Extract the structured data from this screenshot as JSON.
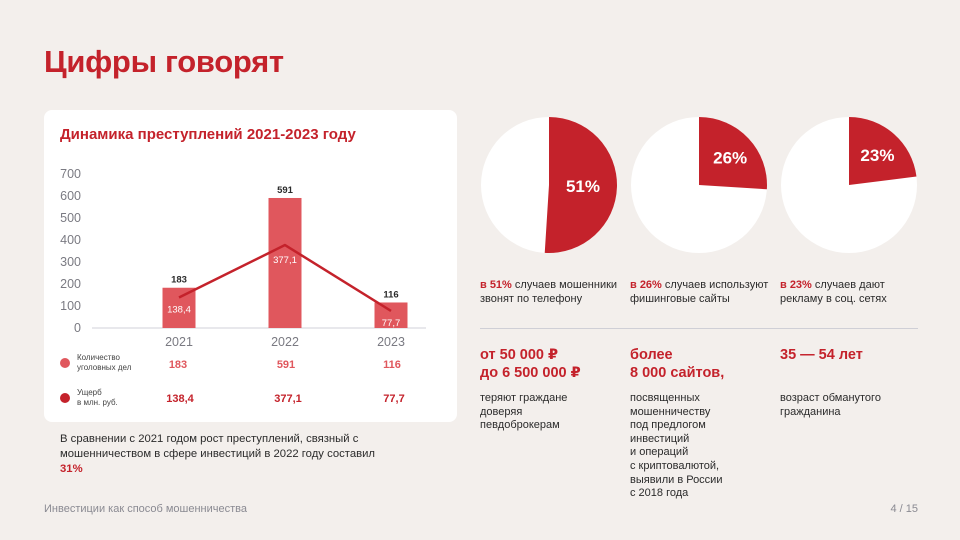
{
  "title": "Цифры говорят",
  "card": {
    "title": "Динамика преступлений 2021-2023 году",
    "legend": {
      "cases_label_1": "Количество",
      "cases_label_2": "уголовных дел",
      "damage_label_1": "Ущерб",
      "damage_label_2": "в млн. руб.",
      "cases_values": [
        "183",
        "591",
        "116"
      ],
      "damage_values": [
        "138,4",
        "377,1",
        "77,7"
      ]
    }
  },
  "chart_data": {
    "type": "bar",
    "title": "Динамика преступлений 2021-2023 году",
    "categories": [
      "2021",
      "2022",
      "2023"
    ],
    "series": [
      {
        "name": "Количество уголовных дел",
        "values": [
          183,
          591,
          116
        ],
        "labels": [
          "183",
          "591",
          "116"
        ],
        "kind": "bar",
        "color": "#e0575d"
      },
      {
        "name": "Ущерб в млн. руб.",
        "values": [
          138.4,
          377.1,
          77.7
        ],
        "labels": [
          "138,4",
          "377,1",
          "77,7"
        ],
        "kind": "line",
        "color": "#c4222b"
      }
    ],
    "yticks": [
      "0",
      "100",
      "200",
      "300",
      "400",
      "500",
      "600",
      "700"
    ],
    "ylim": [
      0,
      700
    ],
    "grid": false
  },
  "note": {
    "text": "В сравнении с 2021 годом рост преступлений, связный с мошенничеством в сфере инвестиций в 2022 году составил ",
    "highlight": "31%"
  },
  "pies": [
    {
      "value": 51,
      "label": "51%",
      "cap_bold": "в 51%",
      "cap_rest": " случаев мошенники звонят по телефону"
    },
    {
      "value": 26,
      "label": "26%",
      "cap_bold": "в 26%",
      "cap_rest": " случаев используют фишинговые сайты"
    },
    {
      "value": 23,
      "label": "23%",
      "cap_bold": "в 23%",
      "cap_rest": " случаев дают рекламу в соц. сетях"
    }
  ],
  "stats": [
    {
      "big_1": "от 50 000 ₽",
      "big_2": "до 6 500 000 ₽",
      "desc": [
        "теряют граждане",
        "доверяя",
        "певдоброкерам"
      ]
    },
    {
      "big_1": "более",
      "big_2": "8 000 сайтов,",
      "desc": [
        "посвященных",
        "мошенничеству",
        "под предлогом",
        "инвестиций",
        "и операций",
        "с криптовалютой,",
        "выявили в России",
        "с 2018 года"
      ]
    },
    {
      "big_1": "35 — 54 лет",
      "big_2": "",
      "desc": [
        "возраст обманутого",
        "гражданина"
      ]
    }
  ],
  "footer": {
    "left": "Инвестиции как способ мошенничества",
    "right": "4 / 15"
  },
  "colors": {
    "accent": "#c4222b",
    "bar": "#e0575d",
    "pie_bg": "#ffffff"
  }
}
